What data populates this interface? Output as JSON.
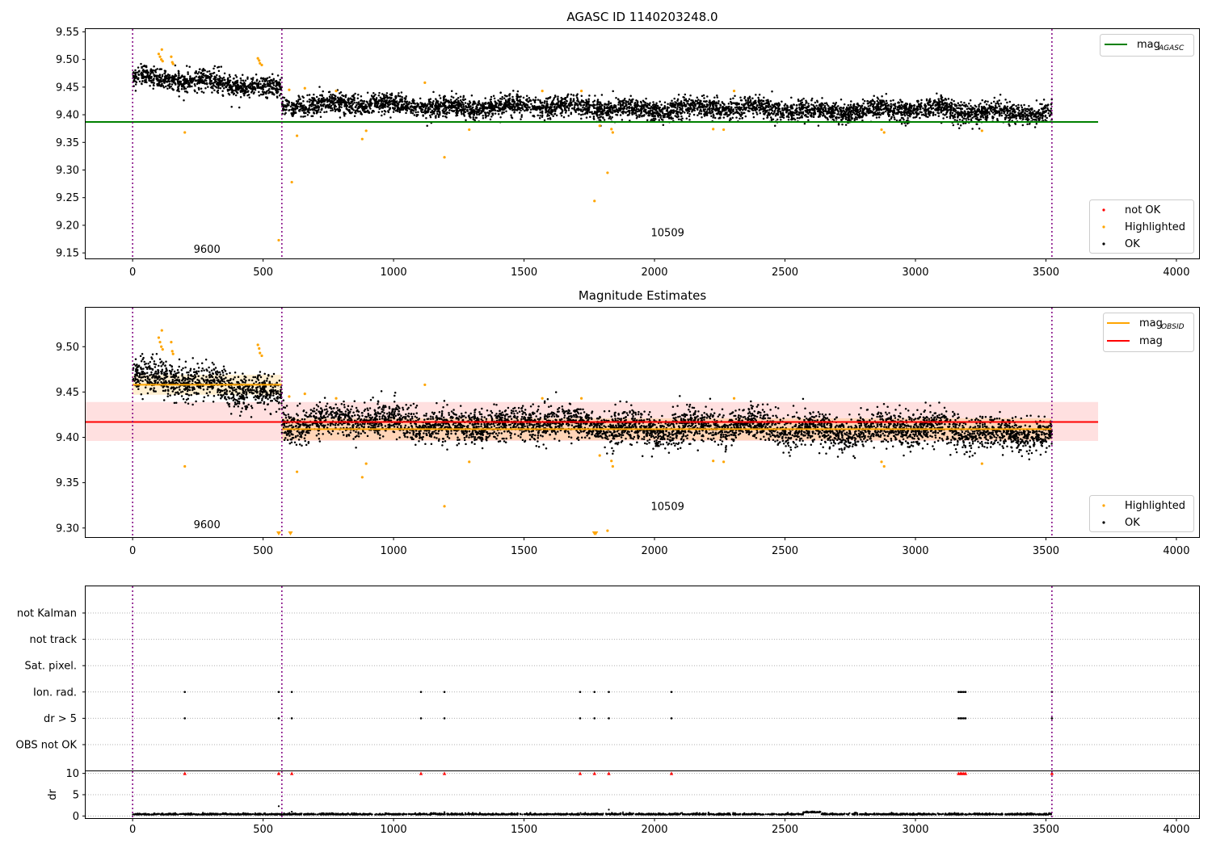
{
  "chart_data": [
    {
      "type": "scatter",
      "title": "AGASC ID 1140203248.0",
      "xlim": [
        -180,
        4090
      ],
      "ylim": [
        9.14,
        9.555
      ],
      "xticks": [
        "0",
        "500",
        "1000",
        "1500",
        "2000",
        "2500",
        "3000",
        "3500",
        "4000"
      ],
      "yticks": [
        "9.15",
        "9.20",
        "9.25",
        "9.30",
        "9.35",
        "9.40",
        "9.45",
        "9.50",
        "9.55"
      ],
      "grid": false,
      "obs_boundaries": [
        0,
        572,
        3523
      ],
      "obs_annotations": [
        {
          "text": "9600",
          "x": 285,
          "y": 9.15
        },
        {
          "text": "10509",
          "x": 2050,
          "y": 9.18
        }
      ],
      "legend_lines": {
        "position": "top-right",
        "entries": [
          {
            "label": "mag",
            "sub": "AGASC",
            "color": "#008000"
          }
        ]
      },
      "legend_points": {
        "position": "bottom-right",
        "entries": [
          {
            "label": "not OK",
            "color": "#ff0000"
          },
          {
            "label": "Highlighted",
            "color": "#ffa500"
          },
          {
            "label": "OK",
            "color": "#000000"
          }
        ]
      },
      "mag_agasc": 9.387,
      "agasc_line_x": [
        -180,
        3700
      ],
      "segments": [
        {
          "x": [
            0,
            572
          ],
          "trend": [
            9.467,
            9.45
          ],
          "noise": 0.009
        },
        {
          "x": [
            572,
            3523
          ],
          "trend": [
            9.418,
            9.405
          ],
          "noise": 0.009
        }
      ],
      "highlighted_points": [
        [
          100,
          9.51
        ],
        [
          105,
          9.505
        ],
        [
          110,
          9.5
        ],
        [
          112,
          9.518
        ],
        [
          115,
          9.497
        ],
        [
          148,
          9.505
        ],
        [
          152,
          9.495
        ],
        [
          155,
          9.492
        ],
        [
          200,
          9.368
        ],
        [
          480,
          9.502
        ],
        [
          485,
          9.498
        ],
        [
          488,
          9.493
        ],
        [
          495,
          9.49
        ],
        [
          560,
          9.173
        ],
        [
          600,
          9.445
        ],
        [
          610,
          9.278
        ],
        [
          630,
          9.362
        ],
        [
          660,
          9.448
        ],
        [
          780,
          9.443
        ],
        [
          880,
          9.356
        ],
        [
          895,
          9.371
        ],
        [
          1120,
          9.458
        ],
        [
          1195,
          9.323
        ],
        [
          1290,
          9.373
        ],
        [
          1570,
          9.443
        ],
        [
          1720,
          9.443
        ],
        [
          1770,
          9.244
        ],
        [
          1790,
          9.38
        ],
        [
          1820,
          9.295
        ],
        [
          1835,
          9.374
        ],
        [
          1840,
          9.368
        ],
        [
          2225,
          9.374
        ],
        [
          2265,
          9.373
        ],
        [
          2305,
          9.443
        ],
        [
          2870,
          9.373
        ],
        [
          2880,
          9.368
        ],
        [
          3255,
          9.371
        ]
      ]
    },
    {
      "type": "scatter",
      "title": "Magnitude Estimates",
      "xlim": [
        -180,
        4090
      ],
      "ylim": [
        9.29,
        9.543
      ],
      "xticks": [
        "0",
        "500",
        "1000",
        "1500",
        "2000",
        "2500",
        "3000",
        "3500",
        "4000"
      ],
      "yticks": [
        "9.30",
        "9.35",
        "9.40",
        "9.45",
        "9.50"
      ],
      "grid": false,
      "obs_boundaries": [
        0,
        572,
        3523
      ],
      "obs_annotations": [
        {
          "text": "9600",
          "x": 285,
          "y": 9.3
        },
        {
          "text": "10509",
          "x": 2050,
          "y": 9.32
        }
      ],
      "legend_lines": {
        "position": "top-right",
        "entries": [
          {
            "label": "mag",
            "sub": "OBSID",
            "color": "#ffa500"
          },
          {
            "label": "mag",
            "sub": "",
            "color": "#ff0000"
          }
        ]
      },
      "legend_points": {
        "position": "bottom-right",
        "entries": [
          {
            "label": "Highlighted",
            "color": "#ffa500"
          },
          {
            "label": "OK",
            "color": "#000000"
          }
        ]
      },
      "mag": 9.417,
      "mag_band": [
        9.396,
        9.439
      ],
      "mag_band_x": [
        -180,
        3700
      ],
      "mag_obsid": [
        {
          "x": [
            0,
            572
          ],
          "value": 9.458,
          "band": [
            9.447,
            9.469
          ]
        },
        {
          "x": [
            572,
            3523
          ],
          "value": 9.409,
          "band": [
            9.397,
            9.421
          ]
        }
      ],
      "segments": [
        {
          "x": [
            0,
            572
          ],
          "trend": [
            9.467,
            9.45
          ],
          "noise": 0.009
        },
        {
          "x": [
            572,
            3523
          ],
          "trend": [
            9.418,
            9.405
          ],
          "noise": 0.009
        }
      ],
      "highlighted_points": [
        [
          100,
          9.51
        ],
        [
          105,
          9.505
        ],
        [
          110,
          9.5
        ],
        [
          112,
          9.518
        ],
        [
          115,
          9.497
        ],
        [
          148,
          9.505
        ],
        [
          152,
          9.495
        ],
        [
          155,
          9.492
        ],
        [
          200,
          9.368
        ],
        [
          480,
          9.502
        ],
        [
          485,
          9.498
        ],
        [
          488,
          9.493
        ],
        [
          495,
          9.49
        ],
        [
          600,
          9.445
        ],
        [
          630,
          9.362
        ],
        [
          660,
          9.448
        ],
        [
          780,
          9.443
        ],
        [
          880,
          9.356
        ],
        [
          895,
          9.371
        ],
        [
          1120,
          9.458
        ],
        [
          1195,
          9.324
        ],
        [
          1290,
          9.373
        ],
        [
          1570,
          9.443
        ],
        [
          1720,
          9.443
        ],
        [
          1790,
          9.38
        ],
        [
          1820,
          9.297
        ],
        [
          1835,
          9.374
        ],
        [
          1840,
          9.368
        ],
        [
          2225,
          9.374
        ],
        [
          2265,
          9.373
        ],
        [
          2305,
          9.443
        ],
        [
          2870,
          9.373
        ],
        [
          2880,
          9.368
        ],
        [
          3255,
          9.371
        ]
      ],
      "clipped_low_x": [
        560,
        605,
        1770,
        1775
      ]
    },
    {
      "type": "scatter",
      "title": "",
      "xlim": [
        -180,
        4090
      ],
      "ylabel": "",
      "flag_rows": [
        "not Kalman",
        "not track",
        "Sat. pixel.",
        "Ion. rad.",
        "dr > 5",
        "OBS not OK"
      ],
      "grid": true,
      "obs_boundaries": [
        0,
        572,
        3523
      ],
      "flag_events": {
        "Ion. rad.": [
          200,
          560,
          610,
          1105,
          1195,
          1715,
          1770,
          1825,
          2065,
          3165,
          3172,
          3178,
          3185,
          3192,
          3523
        ],
        "dr > 5": [
          200,
          560,
          610,
          1105,
          1195,
          1715,
          1770,
          1825,
          2065,
          3165,
          3172,
          3178,
          3185,
          3192,
          3523
        ]
      }
    },
    {
      "type": "scatter",
      "title": "",
      "xlim": [
        -180,
        4090
      ],
      "ylim": [
        -0.5,
        10.5
      ],
      "ylabel": "dr",
      "xticks": [
        "0",
        "500",
        "1000",
        "1500",
        "2000",
        "2500",
        "3000",
        "3500",
        "4000"
      ],
      "yticks": [
        "0",
        "5",
        "10"
      ],
      "grid": true,
      "obs_boundaries": [
        0,
        572,
        3523
      ],
      "dr_typical": 0.3,
      "dr_outliers": [
        [
          560,
          2.3
        ],
        [
          610,
          1.0
        ],
        [
          1825,
          1.5
        ],
        [
          1195,
          0.9
        ]
      ],
      "dr_capped_x": [
        200,
        560,
        610,
        1105,
        1195,
        1715,
        1770,
        1825,
        2065,
        3165,
        3172,
        3178,
        3185,
        3192,
        3523
      ]
    }
  ]
}
